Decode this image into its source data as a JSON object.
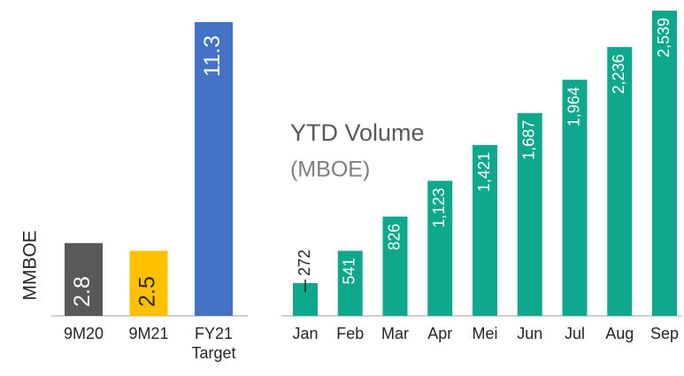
{
  "chart_data": [
    {
      "type": "bar",
      "y_label": "MMBOE",
      "categories": [
        "9M20",
        "9M21",
        "FY21 Target"
      ],
      "values": [
        2.8,
        2.5,
        11.3
      ],
      "colors": [
        "#595959",
        "#ffc000",
        "#4472c4"
      ],
      "label_colors": [
        "#ffffff",
        "#262626",
        "#ffffff"
      ],
      "ylim": [
        0,
        11.3
      ]
    },
    {
      "type": "bar",
      "title": "YTD Volume",
      "subtitle": "(MBOE)",
      "categories": [
        "Jan",
        "Feb",
        "Mar",
        "Apr",
        "Mei",
        "Jun",
        "Jul",
        "Aug",
        "Sep"
      ],
      "values": [
        272,
        541,
        826,
        1123,
        1421,
        1687,
        1964,
        2236,
        2539
      ],
      "value_labels": [
        "272",
        "541",
        "826",
        "1,123",
        "1,421",
        "1,687",
        "1,964",
        "2,236",
        "2,539"
      ],
      "color": "#0fa88c",
      "ylim": [
        0,
        2539
      ]
    }
  ]
}
